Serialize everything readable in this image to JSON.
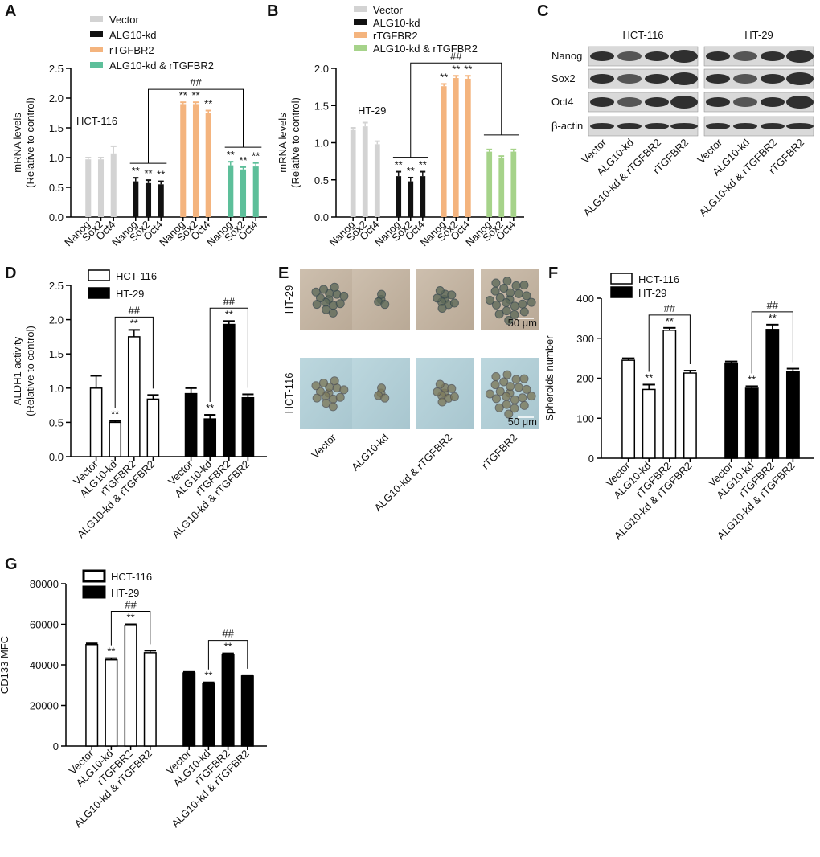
{
  "chart_data": [
    {
      "type": "bar",
      "label": "A",
      "annotation": "HCT-116",
      "ylabel": [
        "mRNA levels",
        "(Relative to control)"
      ],
      "categories": [
        "Nanog",
        "Sox2",
        "Oct4"
      ],
      "series": [
        {
          "name": "Vector",
          "color": "#d3d3d3",
          "values": [
            0.97,
            0.97,
            1.07
          ],
          "errors": [
            0.03,
            0.03,
            0.12
          ],
          "significance": [
            null,
            null,
            null
          ]
        },
        {
          "name": "ALG10-kd",
          "color": "#111111",
          "values": [
            0.6,
            0.57,
            0.55
          ],
          "errors": [
            0.06,
            0.05,
            0.05
          ],
          "significance": [
            "**",
            "**",
            "**"
          ]
        },
        {
          "name": "rTGFBR2",
          "color": "#f4b47e",
          "values": [
            1.9,
            1.9,
            1.75
          ],
          "errors": [
            0.03,
            0.03,
            0.04
          ],
          "significance": [
            "**",
            "**",
            "**"
          ]
        },
        {
          "name": "ALG10-kd & rTGFBR2",
          "color": "#5dbf9a",
          "values": [
            0.87,
            0.8,
            0.85
          ],
          "errors": [
            0.06,
            0.04,
            0.06
          ],
          "significance": [
            "**",
            "**",
            "**"
          ]
        }
      ],
      "ylim": [
        0,
        2.5
      ],
      "yticks": [
        {
          "value": 0,
          "label": "0.0"
        },
        0.5,
        {
          "value": 1,
          "label": "1.0"
        },
        1.5,
        {
          "value": 2,
          "label": "2.0"
        },
        2.5
      ],
      "bracket_labels": [
        "##"
      ]
    },
    {
      "type": "bar",
      "label": "B",
      "annotation": "HT-29",
      "ylabel": [
        "mRNA levels",
        "(Relative to control)"
      ],
      "categories": [
        "Nanog",
        "Sox2",
        "Oct4"
      ],
      "series": [
        {
          "name": "Vector",
          "color": "#d3d3d3",
          "values": [
            1.17,
            1.22,
            0.98
          ],
          "errors": [
            0.03,
            0.05,
            0.04
          ],
          "significance": [
            null,
            null,
            null
          ]
        },
        {
          "name": "ALG10-kd",
          "color": "#111111",
          "values": [
            0.55,
            0.48,
            0.55
          ],
          "errors": [
            0.06,
            0.05,
            0.06
          ],
          "significance": [
            "**",
            "**",
            "**"
          ]
        },
        {
          "name": "rTGFBR2",
          "color": "#f4b47e",
          "values": [
            1.76,
            1.87,
            1.86
          ],
          "errors": [
            0.03,
            0.03,
            0.04
          ],
          "significance": [
            "**",
            "**",
            "**"
          ]
        },
        {
          "name": "ALG10-kd & rTGFBR2",
          "color": "#a6d38a",
          "values": [
            0.88,
            0.79,
            0.88
          ],
          "errors": [
            0.03,
            0.03,
            0.03
          ],
          "significance": [
            null,
            null,
            null
          ]
        }
      ],
      "ylim": [
        0,
        2.0
      ],
      "yticks": [
        {
          "value": 0,
          "label": "0.0"
        },
        0.5,
        {
          "value": 1,
          "label": "1.0"
        },
        1.5,
        {
          "value": 2,
          "label": "2.0"
        }
      ],
      "bracket_labels": [
        "##"
      ]
    },
    {
      "type": "bar",
      "label": "D",
      "ylabel": [
        "ALDH1 activity",
        "(Relative to control)"
      ],
      "categories": [
        "Vector",
        "ALG10-kd",
        "rTGFBR2",
        "ALG10-kd & rTGFBR2"
      ],
      "series": [
        {
          "name": "HCT-116",
          "color": "#ffffff",
          "values": [
            1.0,
            0.5,
            1.75,
            0.84
          ],
          "errors": [
            0.18,
            0.02,
            0.1,
            0.06
          ],
          "significance": [
            null,
            "**",
            "**",
            null
          ]
        },
        {
          "name": "HT-29",
          "color": "#000000",
          "values": [
            0.92,
            0.55,
            1.93,
            0.86
          ],
          "errors": [
            0.08,
            0.06,
            0.05,
            0.05
          ],
          "significance": [
            null,
            "**",
            "**",
            null
          ]
        }
      ],
      "ylim": [
        0,
        2.5
      ],
      "yticks": [
        {
          "value": 0,
          "label": "0.0"
        },
        0.5,
        {
          "value": 1,
          "label": "1.0"
        },
        1.5,
        {
          "value": 2,
          "label": "2.0"
        },
        2.5
      ],
      "bracket_labels": [
        "##",
        "##"
      ]
    },
    {
      "type": "bar",
      "label": "F",
      "ylabel": "Spheroids number",
      "categories": [
        "Vector",
        "ALG10-kd",
        "rTGFBR2",
        "ALG10-kd & rTGFBR2"
      ],
      "series": [
        {
          "name": "HCT-116",
          "color": "#ffffff",
          "values": [
            245,
            172,
            320,
            213
          ],
          "errors": [
            5,
            12,
            6,
            6
          ],
          "significance": [
            null,
            "**",
            "**",
            null
          ]
        },
        {
          "name": "HT-29",
          "color": "#000000",
          "values": [
            238,
            175,
            322,
            217
          ],
          "errors": [
            4,
            5,
            12,
            7
          ],
          "significance": [
            null,
            "**",
            "**",
            null
          ]
        }
      ],
      "ylim": [
        0,
        400
      ],
      "yticks": [
        0,
        100,
        200,
        300,
        400
      ],
      "bracket_labels": [
        "##",
        "##"
      ]
    },
    {
      "type": "bar",
      "label": "G",
      "ylabel": "CD133 MFC",
      "categories": [
        "Vector",
        "ALG10-kd",
        "rTGFBR2",
        "ALG10-kd & rTGFBR2"
      ],
      "series": [
        {
          "name": "HCT-116",
          "color": "#ffffff",
          "values": [
            50000,
            42500,
            59500,
            46000
          ],
          "errors": [
            600,
            800,
            500,
            1000
          ],
          "significance": [
            null,
            "**",
            "**",
            null
          ]
        },
        {
          "name": "HT-29",
          "color": "#000000",
          "values": [
            36000,
            31000,
            45000,
            34500
          ],
          "errors": [
            500,
            400,
            700,
            400
          ],
          "significance": [
            null,
            "**",
            "**",
            null
          ]
        }
      ],
      "ylim": [
        0,
        80000
      ],
      "yticks": [
        0,
        20000,
        40000,
        60000,
        80000
      ],
      "bracket_labels": [
        "##",
        "##"
      ]
    }
  ],
  "blot": {
    "label": "C",
    "cell_lines": [
      "HCT-116",
      "HT-29"
    ],
    "rows": [
      "Nanog",
      "Sox2",
      "Oct4",
      "β-actin"
    ],
    "lanes": [
      "Vector",
      "ALG10-kd",
      "ALG10-kd & rTGFBR2",
      "rTGFBR2"
    ]
  },
  "images": {
    "label": "E",
    "rows": [
      "HT-29",
      "HCT-116"
    ],
    "columns": [
      "Vector",
      "ALG10-kd",
      "ALG10-kd & rTGFBR2",
      "rTGFBR2"
    ],
    "scale_bar": "50 μm"
  }
}
